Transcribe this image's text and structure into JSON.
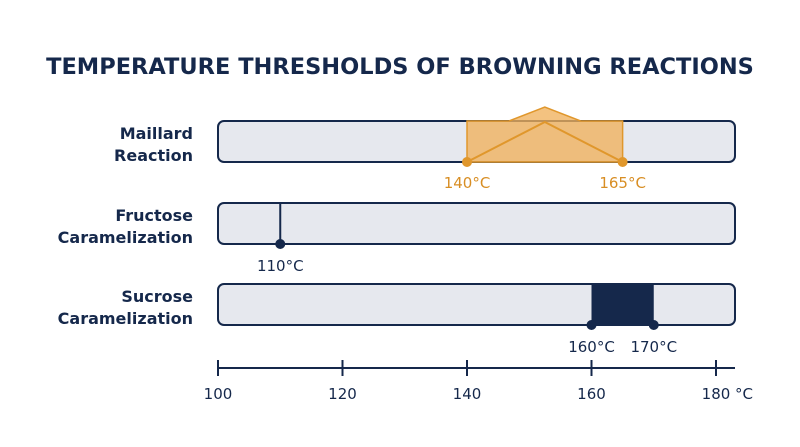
{
  "chart_data": {
    "type": "range",
    "title": "TEMPERATURE THRESHOLDS OF BROWNING REACTIONS",
    "xlim": [
      100,
      180
    ],
    "ticks": [
      100,
      120,
      140,
      160,
      180
    ],
    "tick_labels": [
      "100",
      "120",
      "140",
      "160",
      "180"
    ],
    "unit_label": "°C",
    "grid": false,
    "rows": [
      {
        "label_lines": [
          "Maillard",
          "Reaction"
        ],
        "kind": "range",
        "start": 140,
        "end": 165,
        "start_label": "140°C",
        "end_label": "165°C",
        "color": "#f0b15c",
        "marker_color": "#e0972c"
      },
      {
        "label_lines": [
          "Fructose",
          "Caramelization"
        ],
        "kind": "point",
        "value": 110,
        "value_label": "110°C",
        "color": "#15284b"
      },
      {
        "label_lines": [
          "Sucrose",
          "Caramelization"
        ],
        "kind": "range",
        "start": 160,
        "end": 170,
        "start_label": "160°C",
        "end_label": "170°C",
        "color": "#15284b",
        "marker_color": "#15284b"
      }
    ]
  },
  "colors": {
    "text": "#15284b",
    "track_fill": "#e6e8ee",
    "track_stroke": "#15284b",
    "maillard_label": "#d88e24"
  }
}
